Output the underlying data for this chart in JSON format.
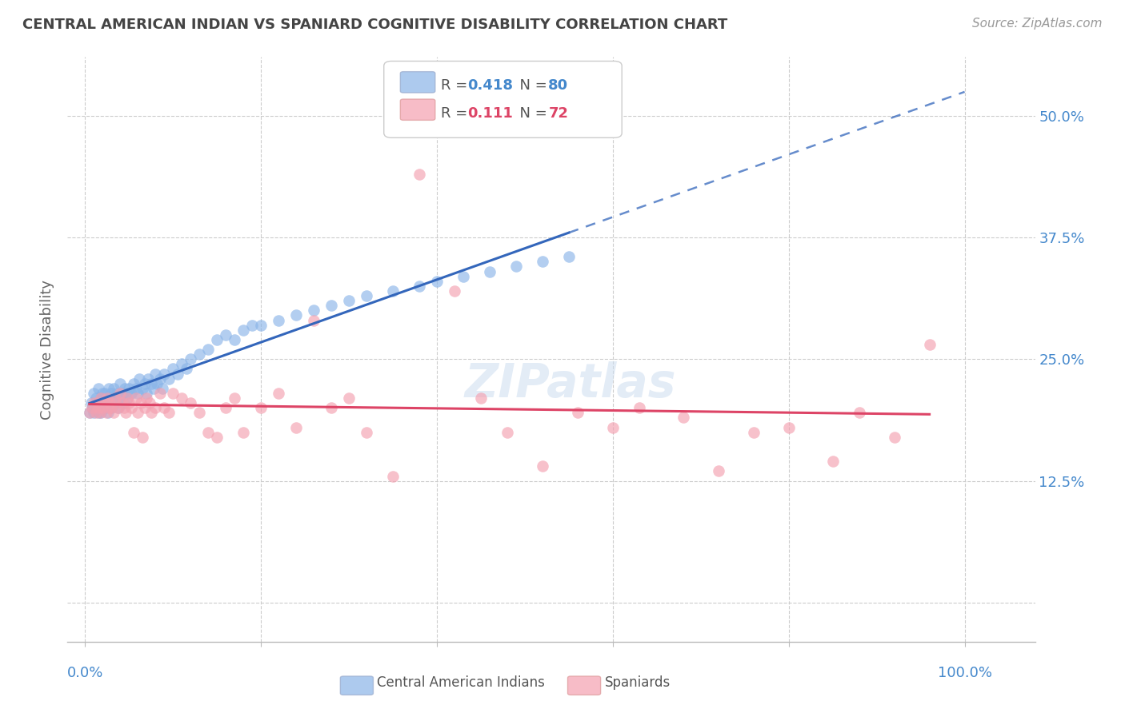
{
  "title": "CENTRAL AMERICAN INDIAN VS SPANIARD COGNITIVE DISABILITY CORRELATION CHART",
  "source": "Source: ZipAtlas.com",
  "ylabel": "Cognitive Disability",
  "ytick_vals": [
    0.0,
    0.125,
    0.25,
    0.375,
    0.5
  ],
  "ytick_labels": [
    "",
    "12.5%",
    "25.0%",
    "37.5%",
    "50.0%"
  ],
  "background_color": "#ffffff",
  "grid_color": "#cccccc",
  "watermark": "ZIPatlas",
  "legend_R1": "0.418",
  "legend_N1": "80",
  "legend_R2": "0.111",
  "legend_N2": "72",
  "blue_color": "#8ab4e8",
  "pink_color": "#f4a0b0",
  "blue_line_color": "#3366bb",
  "pink_line_color": "#dd4466",
  "label_color": "#4488cc",
  "title_color": "#444444",
  "xlim": [
    -0.02,
    1.08
  ],
  "ylim": [
    -0.04,
    0.56
  ],
  "blue_x": [
    0.005,
    0.007,
    0.008,
    0.01,
    0.01,
    0.012,
    0.013,
    0.015,
    0.015,
    0.016,
    0.018,
    0.018,
    0.02,
    0.02,
    0.021,
    0.022,
    0.023,
    0.025,
    0.026,
    0.027,
    0.028,
    0.03,
    0.03,
    0.032,
    0.033,
    0.035,
    0.036,
    0.038,
    0.04,
    0.04,
    0.042,
    0.044,
    0.045,
    0.047,
    0.048,
    0.05,
    0.052,
    0.055,
    0.058,
    0.06,
    0.062,
    0.065,
    0.068,
    0.07,
    0.072,
    0.075,
    0.078,
    0.08,
    0.082,
    0.085,
    0.088,
    0.09,
    0.095,
    0.1,
    0.105,
    0.11,
    0.115,
    0.12,
    0.13,
    0.14,
    0.15,
    0.16,
    0.17,
    0.18,
    0.19,
    0.2,
    0.22,
    0.24,
    0.26,
    0.28,
    0.3,
    0.32,
    0.35,
    0.38,
    0.4,
    0.43,
    0.46,
    0.49,
    0.52,
    0.55
  ],
  "blue_y": [
    0.195,
    0.205,
    0.2,
    0.215,
    0.195,
    0.21,
    0.2,
    0.195,
    0.22,
    0.205,
    0.21,
    0.195,
    0.215,
    0.2,
    0.21,
    0.215,
    0.2,
    0.205,
    0.195,
    0.22,
    0.21,
    0.215,
    0.2,
    0.22,
    0.21,
    0.205,
    0.215,
    0.2,
    0.225,
    0.21,
    0.215,
    0.205,
    0.22,
    0.215,
    0.21,
    0.22,
    0.215,
    0.225,
    0.22,
    0.215,
    0.23,
    0.22,
    0.225,
    0.215,
    0.23,
    0.225,
    0.22,
    0.235,
    0.225,
    0.23,
    0.22,
    0.235,
    0.23,
    0.24,
    0.235,
    0.245,
    0.24,
    0.25,
    0.255,
    0.26,
    0.27,
    0.275,
    0.27,
    0.28,
    0.285,
    0.285,
    0.29,
    0.295,
    0.3,
    0.305,
    0.31,
    0.315,
    0.32,
    0.325,
    0.33,
    0.335,
    0.34,
    0.345,
    0.35,
    0.355
  ],
  "pink_x": [
    0.005,
    0.008,
    0.01,
    0.012,
    0.014,
    0.015,
    0.017,
    0.018,
    0.02,
    0.022,
    0.024,
    0.025,
    0.027,
    0.028,
    0.03,
    0.032,
    0.034,
    0.035,
    0.037,
    0.04,
    0.042,
    0.044,
    0.046,
    0.048,
    0.05,
    0.052,
    0.055,
    0.058,
    0.06,
    0.063,
    0.065,
    0.068,
    0.07,
    0.073,
    0.075,
    0.08,
    0.085,
    0.09,
    0.095,
    0.1,
    0.11,
    0.12,
    0.13,
    0.14,
    0.15,
    0.16,
    0.17,
    0.18,
    0.2,
    0.22,
    0.24,
    0.26,
    0.28,
    0.3,
    0.32,
    0.35,
    0.38,
    0.42,
    0.45,
    0.48,
    0.52,
    0.56,
    0.6,
    0.63,
    0.68,
    0.72,
    0.76,
    0.8,
    0.85,
    0.88,
    0.92,
    0.96
  ],
  "pink_y": [
    0.195,
    0.2,
    0.205,
    0.195,
    0.205,
    0.2,
    0.195,
    0.21,
    0.2,
    0.205,
    0.195,
    0.21,
    0.2,
    0.205,
    0.2,
    0.195,
    0.21,
    0.205,
    0.2,
    0.215,
    0.205,
    0.2,
    0.195,
    0.21,
    0.205,
    0.2,
    0.175,
    0.21,
    0.195,
    0.205,
    0.17,
    0.2,
    0.21,
    0.205,
    0.195,
    0.2,
    0.215,
    0.2,
    0.195,
    0.215,
    0.21,
    0.205,
    0.195,
    0.175,
    0.17,
    0.2,
    0.21,
    0.175,
    0.2,
    0.215,
    0.18,
    0.29,
    0.2,
    0.21,
    0.175,
    0.13,
    0.44,
    0.32,
    0.21,
    0.175,
    0.14,
    0.195,
    0.18,
    0.2,
    0.19,
    0.135,
    0.175,
    0.18,
    0.145,
    0.195,
    0.17,
    0.265
  ]
}
